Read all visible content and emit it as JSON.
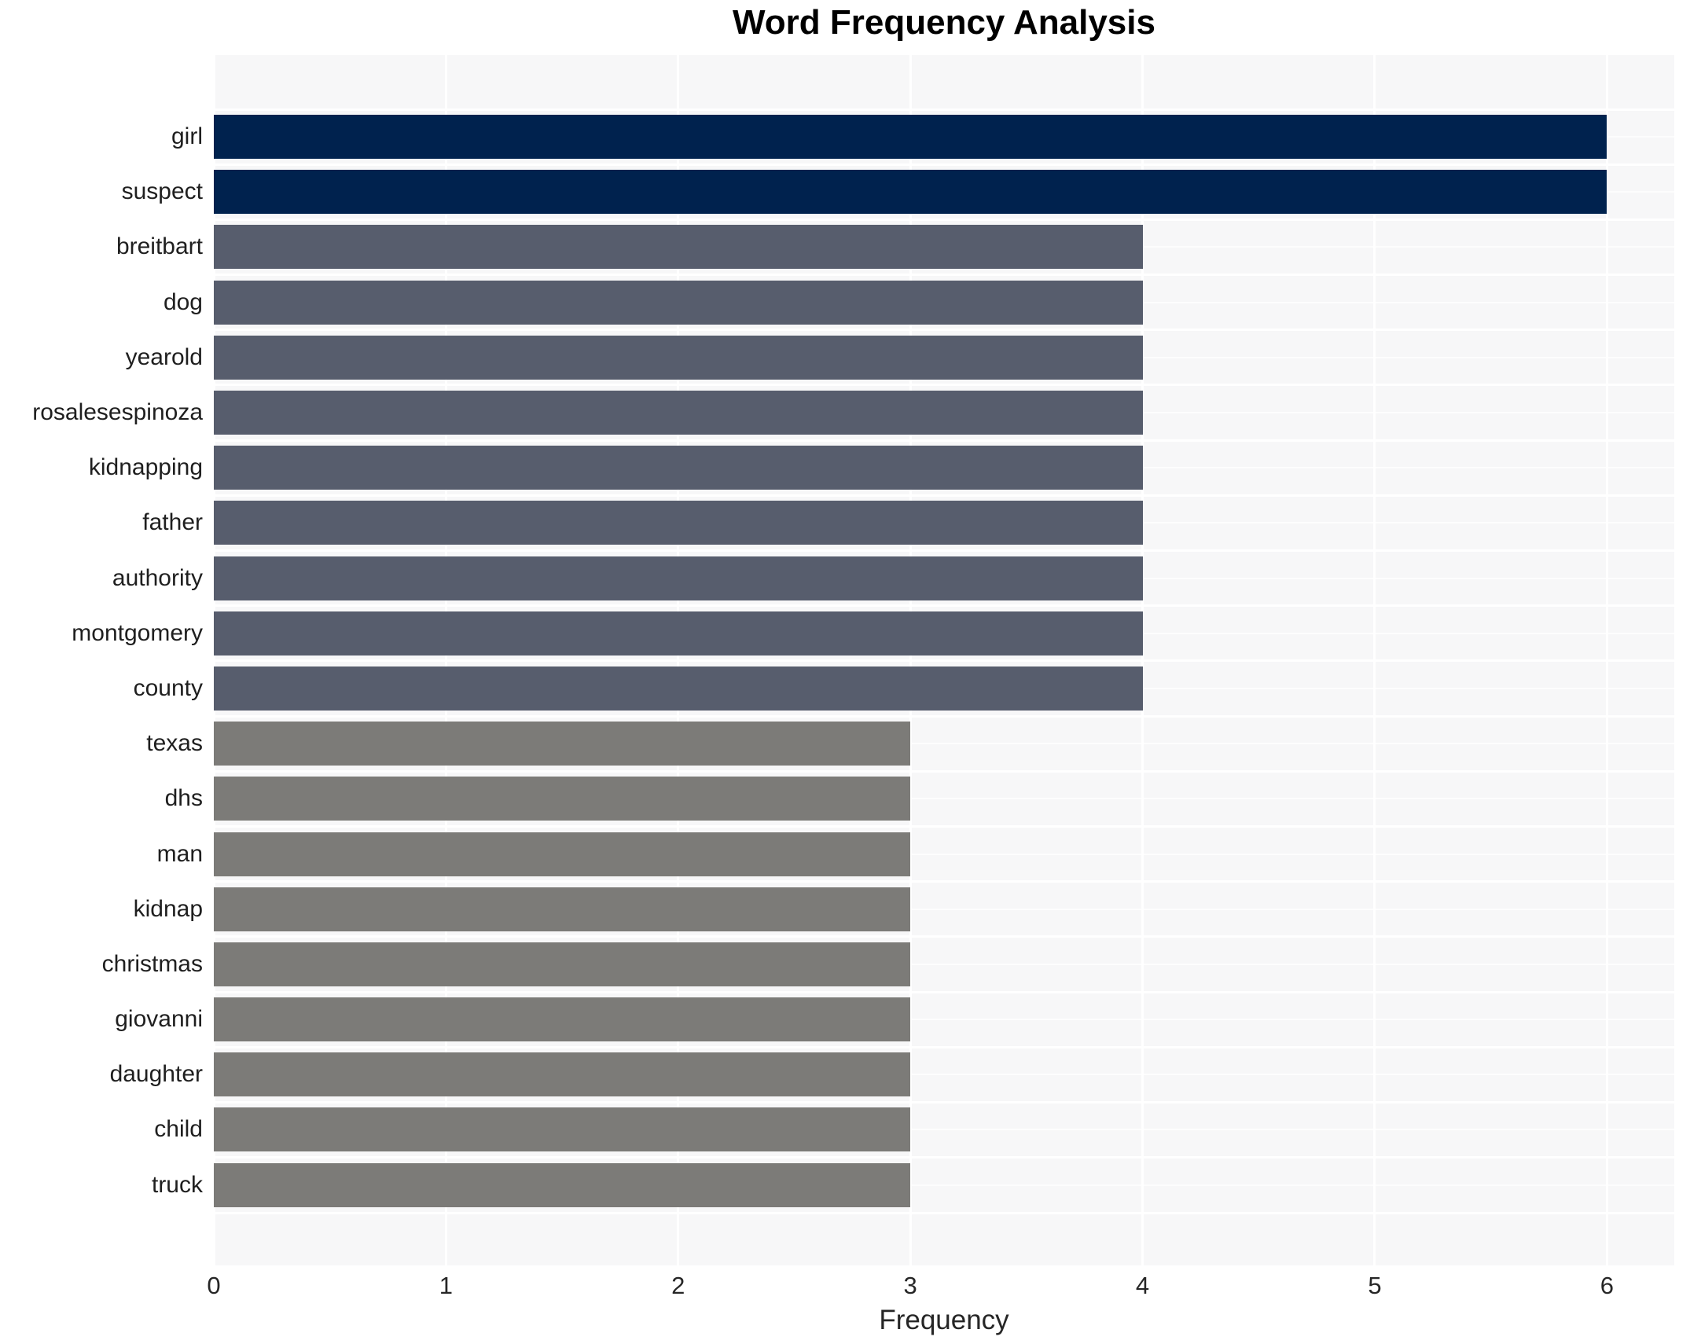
{
  "chart_data": {
    "type": "bar",
    "orientation": "horizontal",
    "title": "Word Frequency Analysis",
    "xlabel": "Frequency",
    "ylabel": "",
    "categories": [
      "girl",
      "suspect",
      "breitbart",
      "dog",
      "yearold",
      "rosalesespinoza",
      "kidnapping",
      "father",
      "authority",
      "montgomery",
      "county",
      "texas",
      "dhs",
      "man",
      "kidnap",
      "christmas",
      "giovanni",
      "daughter",
      "child",
      "truck"
    ],
    "values": [
      6,
      6,
      4,
      4,
      4,
      4,
      4,
      4,
      4,
      4,
      4,
      3,
      3,
      3,
      3,
      3,
      3,
      3,
      3,
      3
    ],
    "colors": [
      "#00224e",
      "#00224e",
      "#575d6d",
      "#575d6d",
      "#575d6d",
      "#575d6d",
      "#575d6d",
      "#575d6d",
      "#575d6d",
      "#575d6d",
      "#575d6d",
      "#7c7b78",
      "#7c7b78",
      "#7c7b78",
      "#7c7b78",
      "#7c7b78",
      "#7c7b78",
      "#7c7b78",
      "#7c7b78",
      "#7c7b78"
    ],
    "palette": {
      "value_6": "#00224e",
      "value_4": "#575d6d",
      "value_3": "#7c7b78"
    },
    "xlim": [
      0,
      6.29
    ],
    "xticks": [
      0,
      1,
      2,
      3,
      4,
      5,
      6
    ],
    "grid": true,
    "grid_color": "#ffffff",
    "plot_background": "#f7f7f8",
    "figure_background": "#ffffff",
    "legend": false
  }
}
